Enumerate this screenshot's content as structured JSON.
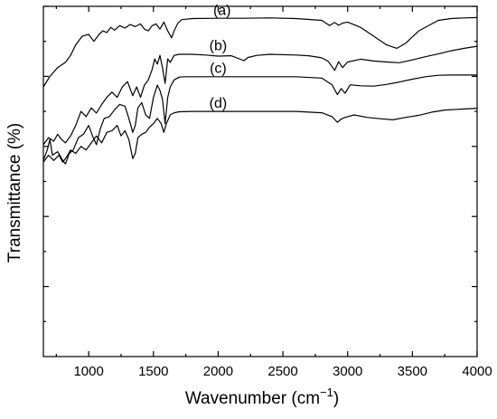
{
  "chart_data": {
    "type": "line",
    "title": "",
    "xlabel": "Wavenumber (cm",
    "xlabel_superscript": "−1",
    "xlabel_suffix": ")",
    "ylabel": "Transmittance (%)",
    "xlim": [
      650,
      4000
    ],
    "ylim": [
      0,
      100
    ],
    "x_ticks": [
      1000,
      1500,
      2000,
      2500,
      3000,
      3500,
      4000
    ],
    "y_tick_labels_shown": false,
    "grid": false,
    "legend": "none",
    "series": [
      {
        "name": "(a)",
        "x": [
          650,
          700,
          760,
          820,
          860,
          900,
          950,
          1000,
          1040,
          1080,
          1110,
          1140,
          1170,
          1200,
          1240,
          1280,
          1320,
          1360,
          1400,
          1430,
          1460,
          1490,
          1520,
          1550,
          1580,
          1610,
          1640,
          1660,
          1690,
          1720,
          1800,
          2000,
          2200,
          2400,
          2600,
          2800,
          2860,
          2900,
          2930,
          2960,
          3000,
          3100,
          3200,
          3300,
          3380,
          3450,
          3550,
          3700,
          3800,
          3900,
          4000
        ],
        "y": [
          77,
          80,
          82.5,
          84,
          86,
          89,
          91.5,
          92,
          90,
          92,
          93,
          92.5,
          94,
          93.2,
          94.5,
          93.8,
          94.8,
          94.2,
          95,
          93.5,
          93,
          94.5,
          95,
          93.5,
          95.5,
          93,
          91,
          93,
          95.3,
          96.2,
          96.5,
          96.6,
          96.6,
          96.7,
          96.5,
          96,
          94.5,
          95.4,
          94.6,
          95.2,
          95.5,
          94,
          91.5,
          89,
          88,
          89.5,
          93,
          96,
          96.5,
          96.7,
          96.8
        ]
      },
      {
        "name": "(b)",
        "x": [
          650,
          690,
          730,
          760,
          790,
          820,
          860,
          900,
          940,
          980,
          1020,
          1060,
          1100,
          1140,
          1180,
          1220,
          1260,
          1300,
          1340,
          1370,
          1400,
          1430,
          1460,
          1490,
          1510,
          1530,
          1550,
          1570,
          1590,
          1610,
          1630,
          1660,
          1700,
          1800,
          1900,
          2000,
          2100,
          2200,
          2230,
          2300,
          2400,
          2600,
          2700,
          2800,
          2850,
          2900,
          2930,
          2960,
          3000,
          3100,
          3200,
          3300,
          3400,
          3500,
          3600,
          3700,
          3800,
          3900,
          4000
        ],
        "y": [
          60.5,
          62.5,
          61.5,
          63.5,
          62,
          61,
          63,
          66,
          70,
          68.5,
          71,
          69.5,
          72,
          74,
          75.5,
          74,
          77,
          78.5,
          74.5,
          77,
          74,
          77.5,
          79,
          82,
          85,
          83.5,
          86,
          82.5,
          78,
          85,
          84,
          86,
          86.3,
          86.3,
          86.1,
          85.8,
          85.9,
          84.5,
          85.4,
          86,
          86.3,
          86.1,
          85.9,
          85.3,
          84.3,
          81.7,
          84.2,
          82.5,
          84.1,
          84.9,
          84.4,
          84.1,
          83.9,
          84.7,
          85.6,
          86.4,
          87.3,
          88,
          88.6
        ]
      },
      {
        "name": "(c)",
        "x": [
          650,
          680,
          700,
          720,
          760,
          800,
          820,
          850,
          880,
          920,
          960,
          1000,
          1030,
          1060,
          1090,
          1120,
          1160,
          1200,
          1240,
          1280,
          1310,
          1340,
          1360,
          1380,
          1410,
          1440,
          1470,
          1500,
          1530,
          1550,
          1570,
          1590,
          1610,
          1630,
          1660,
          1700,
          1750,
          1800,
          2000,
          2200,
          2400,
          2600,
          2800,
          2880,
          2920,
          2950,
          2980,
          3020,
          3100,
          3200,
          3300,
          3400,
          3500,
          3600,
          3700,
          3800,
          4000
        ],
        "y": [
          56,
          59,
          62,
          57.5,
          58.5,
          56,
          55,
          58,
          59,
          62.5,
          63.5,
          66,
          63,
          60.5,
          65,
          68,
          68.5,
          70.5,
          72,
          71.5,
          68,
          64,
          66,
          71,
          72.5,
          69,
          68,
          74,
          77.5,
          76,
          73.5,
          66.5,
          74,
          77,
          79,
          79.8,
          79.9,
          79.9,
          79.9,
          79.9,
          79.9,
          79.9,
          79.5,
          77.6,
          74.8,
          76.5,
          75.2,
          77.6,
          77.3,
          77.2,
          77.7,
          78.4,
          79.2,
          79.9,
          80.3,
          80.4,
          80.4
        ]
      },
      {
        "name": "(d)",
        "x": [
          650,
          690,
          730,
          770,
          800,
          830,
          860,
          900,
          940,
          980,
          1020,
          1060,
          1100,
          1140,
          1180,
          1220,
          1250,
          1280,
          1310,
          1340,
          1360,
          1380,
          1410,
          1440,
          1470,
          1500,
          1530,
          1560,
          1580,
          1600,
          1630,
          1660,
          1700,
          1800,
          2000,
          2200,
          2400,
          2600,
          2800,
          2880,
          2920,
          2950,
          2980,
          3050,
          3150,
          3250,
          3350,
          3450,
          3550,
          3650,
          3750,
          3850,
          4000
        ],
        "y": [
          55.5,
          57.5,
          56,
          57.5,
          55.5,
          57,
          59,
          58,
          60,
          59,
          61,
          63,
          61,
          64,
          64.5,
          66,
          63,
          64.5,
          62,
          56.5,
          58,
          62.5,
          63.5,
          64,
          65.5,
          66.5,
          68,
          66.5,
          64,
          66.5,
          69,
          69.6,
          69.9,
          70,
          70,
          70,
          70,
          70,
          69.6,
          68.5,
          66.9,
          67.8,
          68.3,
          69,
          68.3,
          67.9,
          67.6,
          68.3,
          68.9,
          69.8,
          70.4,
          70.6,
          70.9
        ]
      }
    ]
  }
}
